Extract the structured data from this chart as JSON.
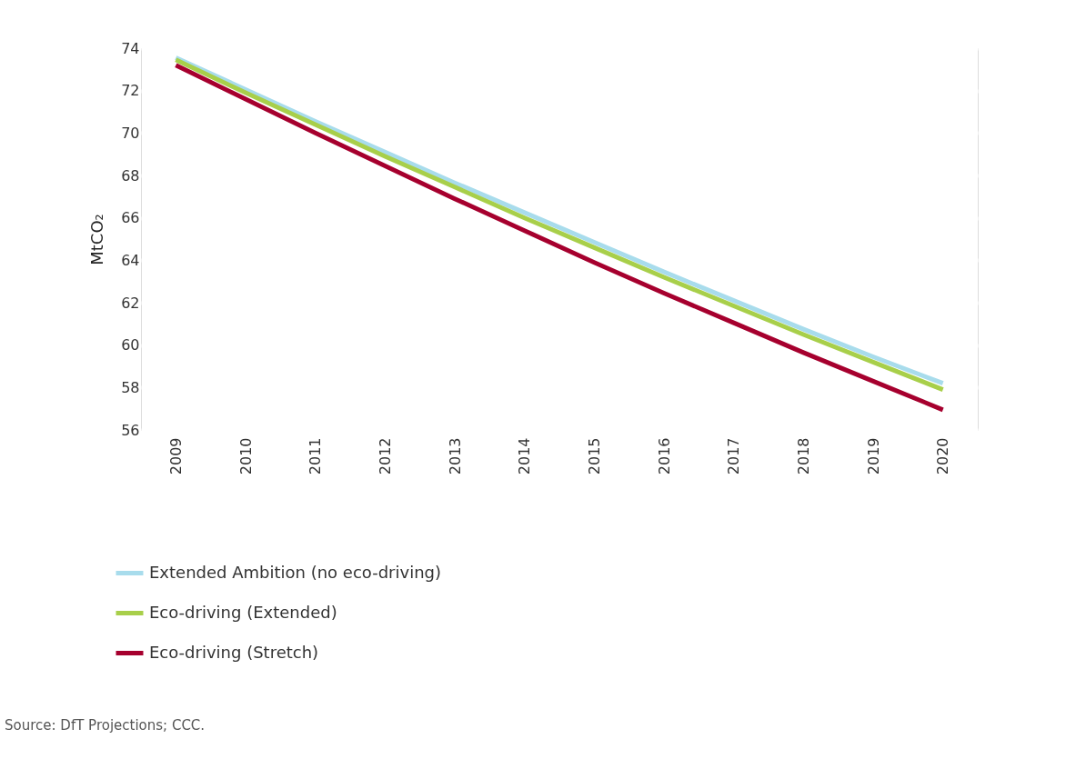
{
  "chart_data": {
    "type": "line",
    "ylabel": "MtCO₂",
    "categories": [
      "2009",
      "2010",
      "2011",
      "2012",
      "2013",
      "2014",
      "2015",
      "2016",
      "2017",
      "2018",
      "2019",
      "2020"
    ],
    "series": [
      {
        "name": "Extended Ambition (no eco-driving)",
        "color": "#a8dcec",
        "values": [
          73.55,
          72.05,
          70.55,
          69.1,
          67.65,
          66.25,
          64.85,
          63.45,
          62.1,
          60.75,
          59.45,
          58.2
        ]
      },
      {
        "name": "Eco-driving (Extended)",
        "color": "#a8cf4a",
        "values": [
          73.45,
          71.9,
          70.4,
          68.9,
          67.45,
          66.0,
          64.6,
          63.2,
          61.85,
          60.5,
          59.2,
          57.9
        ]
      },
      {
        "name": "Eco-driving (Stretch)",
        "color": "#a6002e",
        "values": [
          73.2,
          71.6,
          70.0,
          68.45,
          66.9,
          65.4,
          63.9,
          62.45,
          61.05,
          59.65,
          58.3,
          56.95
        ]
      }
    ],
    "ylim": [
      56,
      74
    ],
    "yticks": [
      56,
      58,
      60,
      62,
      64,
      66,
      68,
      70,
      72,
      74
    ],
    "grid": "y",
    "legend": "bottom",
    "marker": "none",
    "line_style": "solid",
    "annotations": [
      "Source: DfT Projections; CCC."
    ]
  }
}
